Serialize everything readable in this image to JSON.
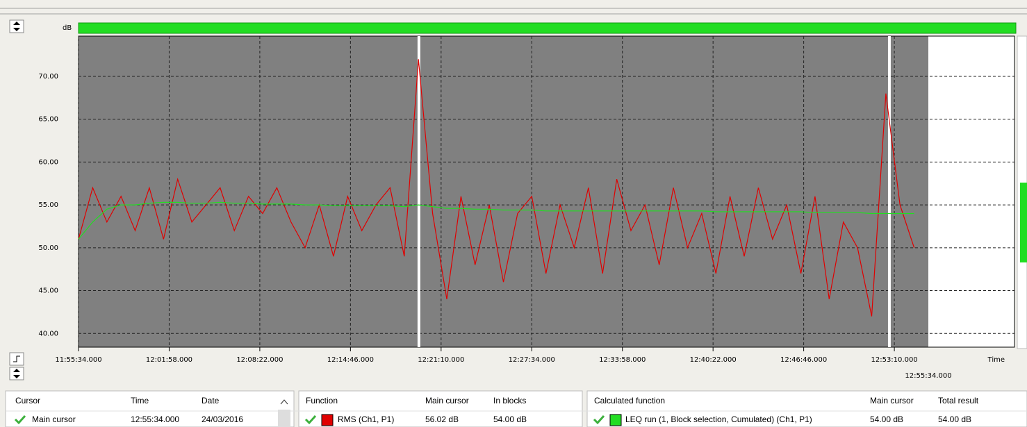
{
  "chart_data": {
    "type": "line",
    "y_unit": "dB",
    "x_label": "Time",
    "x": [
      42934,
      42994,
      43054,
      43114,
      43174,
      43234,
      43294,
      43354,
      43414,
      43474,
      43534,
      43594,
      43654,
      43714,
      43774,
      43834,
      43894,
      43954,
      44014,
      44074,
      44134,
      44194,
      44254,
      44314,
      44374,
      44434,
      44494,
      44554,
      44614,
      44674,
      44734,
      44794,
      44854,
      44914,
      44974,
      45034,
      45094,
      45154,
      45214,
      45274,
      45334,
      45394,
      45454,
      45514,
      45574,
      45634,
      45694,
      45754,
      45814,
      45874,
      45934,
      45994,
      46054,
      46114,
      46174,
      46234,
      46294,
      46354,
      46414,
      46474
    ],
    "series": [
      {
        "name": "RMS (Ch1, P1)",
        "color": "#e00000",
        "values": [
          51,
          57,
          53,
          56,
          52,
          57,
          51,
          58,
          53,
          55,
          57,
          52,
          56,
          54,
          57,
          53,
          50,
          55,
          49,
          56,
          52,
          55,
          57,
          49,
          72,
          54,
          44,
          56,
          48,
          55,
          46,
          54,
          56,
          47,
          55,
          50,
          57,
          47,
          58,
          52,
          55,
          48,
          57,
          50,
          54,
          47,
          56,
          49,
          57,
          51,
          55,
          47,
          56,
          44,
          53,
          50,
          42,
          68,
          55,
          50
        ]
      },
      {
        "name": "LEQ run (1, Block selection, Cumulated) (Ch1, P1)",
        "color": "#22dd22",
        "values": [
          51,
          53,
          54.5,
          55,
          55,
          55.2,
          55.3,
          55.3,
          55.2,
          55.2,
          55.3,
          55.2,
          55.2,
          55.1,
          55.1,
          55.1,
          55,
          55,
          54.9,
          54.9,
          54.9,
          54.9,
          54.9,
          54.8,
          55,
          54.8,
          54.6,
          54.6,
          54.5,
          54.5,
          54.4,
          54.4,
          54.4,
          54.3,
          54.3,
          54.3,
          54.3,
          54.3,
          54.3,
          54.3,
          54.3,
          54.3,
          54.3,
          54.3,
          54.3,
          54.2,
          54.2,
          54.2,
          54.2,
          54.2,
          54.2,
          54.2,
          54.1,
          54.1,
          54.1,
          54.1,
          54,
          54,
          54,
          54
        ]
      }
    ],
    "xlim": [
      42934,
      46899
    ],
    "xticks": [
      {
        "value": 42934,
        "label": "11:55:34.000"
      },
      {
        "value": 43318,
        "label": "12:01:58.000"
      },
      {
        "value": 43702,
        "label": "12:08:22.000"
      },
      {
        "value": 44086,
        "label": "12:14:46.000"
      },
      {
        "value": 44470,
        "label": "12:21:10.000"
      },
      {
        "value": 44854,
        "label": "12:27:34.000"
      },
      {
        "value": 45238,
        "label": "12:33:58.000"
      },
      {
        "value": 45622,
        "label": "12:40:22.000"
      },
      {
        "value": 46006,
        "label": "12:46:46.000"
      },
      {
        "value": 46390,
        "label": "12:53:10.000"
      }
    ],
    "ylim": [
      38.4,
      74.7
    ],
    "yticks": [
      {
        "value": 40,
        "label": "40.00"
      },
      {
        "value": 45,
        "label": "45.00"
      },
      {
        "value": 50,
        "label": "50.00"
      },
      {
        "value": 55,
        "label": "55.00"
      },
      {
        "value": 60,
        "label": "60.00"
      },
      {
        "value": 65,
        "label": "65.00"
      },
      {
        "value": 70,
        "label": "70.00"
      }
    ],
    "grid": true,
    "block_boundaries": [
      44376,
      46369
    ],
    "cursor": {
      "value": 46534,
      "label": "12:55:34.000"
    }
  },
  "cursor_table": {
    "headers": [
      "Cursor",
      "Time",
      "Date"
    ],
    "row": [
      "Main cursor",
      "12:55:34.000",
      "24/03/2016"
    ]
  },
  "function_table": {
    "headers": [
      "Function",
      "Main cursor",
      "In blocks"
    ],
    "row": [
      "56.02 dB",
      "54.00 dB"
    ]
  },
  "calculated_table": {
    "headers": [
      "Calculated function",
      "Main cursor",
      "Total result"
    ],
    "row": [
      "54.00 dB",
      "54.00 dB"
    ]
  }
}
